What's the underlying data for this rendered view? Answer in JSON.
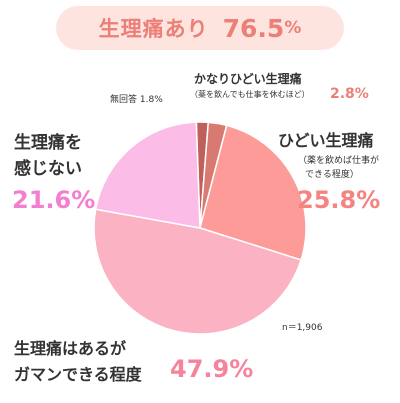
{
  "header": {
    "label": "生理痛あり",
    "value": "76.5",
    "unit": "%"
  },
  "note": "n＝1,906",
  "chart_data": {
    "type": "pie",
    "start_angle_deg": -2,
    "direction": "clockwise",
    "slices": [
      {
        "key": "s_unanswered",
        "line1": "無回答",
        "line2": "",
        "value": 1.8,
        "display": "1.8%",
        "color": "#c0605a"
      },
      {
        "key": "s_severe",
        "line1": "かなりひどい生理痛",
        "line2": "（薬を飲んでも仕事を休むほど）",
        "value": 2.8,
        "display": "2.8%",
        "color": "#d87a72"
      },
      {
        "key": "s_bad",
        "line1": "ひどい生理痛",
        "line2": "（薬を飲めば仕事が",
        "line3": "できる程度）",
        "value": 25.8,
        "display": "25.8%",
        "color": "#fc9b97"
      },
      {
        "key": "s_bearable",
        "line1": "生理痛はあるが",
        "line2": "ガマンできる程度",
        "value": 47.9,
        "display": "47.9%",
        "color": "#fbb2c2"
      },
      {
        "key": "s_none",
        "line1": "生理痛を",
        "line2": "感じない",
        "value": 21.6,
        "display": "21.6%",
        "color": "#fbbde8"
      }
    ]
  }
}
